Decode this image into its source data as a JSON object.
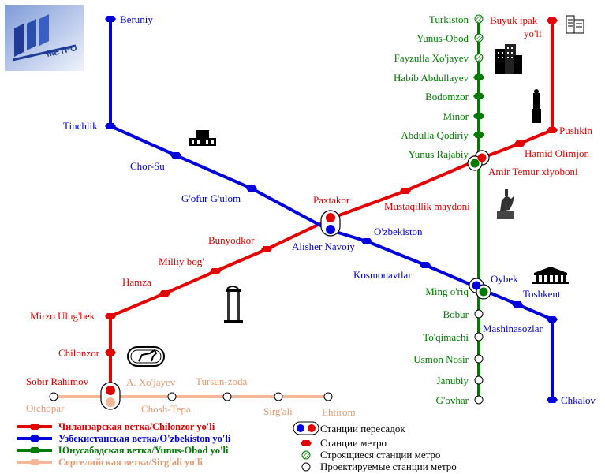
{
  "colors": {
    "red": "#e40000",
    "blue": "#0000dd",
    "green": "#007a00",
    "peach": "#f4b896",
    "peach_text": "#e69a70",
    "ink": "#000000"
  },
  "logo": {
    "text": "МЕТРО"
  },
  "lines": {
    "chilonzor": {
      "name": "Чиланзарская ветка/Chilonzor yo'li"
    },
    "ozbekiston": {
      "name": "Узбекистанская ветка/O'zbekiston yo'li"
    },
    "yunusobod": {
      "name": "Юнусабадская ветка/Yunus-Obod yo'li"
    },
    "sergeli": {
      "name": "Сергелийская ветка/Sirg'ali yo'li"
    }
  },
  "stations": {
    "red": [
      "Buyuk ipak",
      "yo'li",
      "Pushkin",
      "Hamid Olimjon",
      "Amir Temur xiyoboni",
      "Mustaqillik maydoni",
      "Paxtakor",
      "Bunyodkor",
      "Milliy bog'",
      "Hamza",
      "Mirzo Ulug'bek",
      "Chilonzor",
      "Sobir Rahimov",
      "A. Xo'jayev"
    ],
    "blue": [
      "Beruniy",
      "Tinchlik",
      "Chor-Su",
      "G'ofur G'ulom",
      "Alisher Navoiy",
      "O'zbekiston",
      "Kosmonavtlar",
      "Oybek",
      "Toshkent",
      "Mashinasozlar",
      "Chkalov"
    ],
    "green": [
      "Turkiston",
      "Yunus-Obod",
      "Fayzulla Xo'jayev",
      "Habib Abdullayev",
      "Bodomzor",
      "Minor",
      "Abdulla Qodiriy",
      "Yunus Rajabiy",
      "Ming o'riq",
      "Bobur",
      "To'qimachi",
      "Usmon Nosir",
      "Janubiy",
      "G'ovhar"
    ],
    "peach": [
      "Otchopar",
      "Chosh-Tepa",
      "Tursun-zoda",
      "Sirg'ali",
      "Ehtirom"
    ]
  },
  "legend": {
    "transfer": "Станции пересадок",
    "station": "Станции метро",
    "construction": "Строящиеся станции метро",
    "planned": "Проектируемые станции метро"
  }
}
